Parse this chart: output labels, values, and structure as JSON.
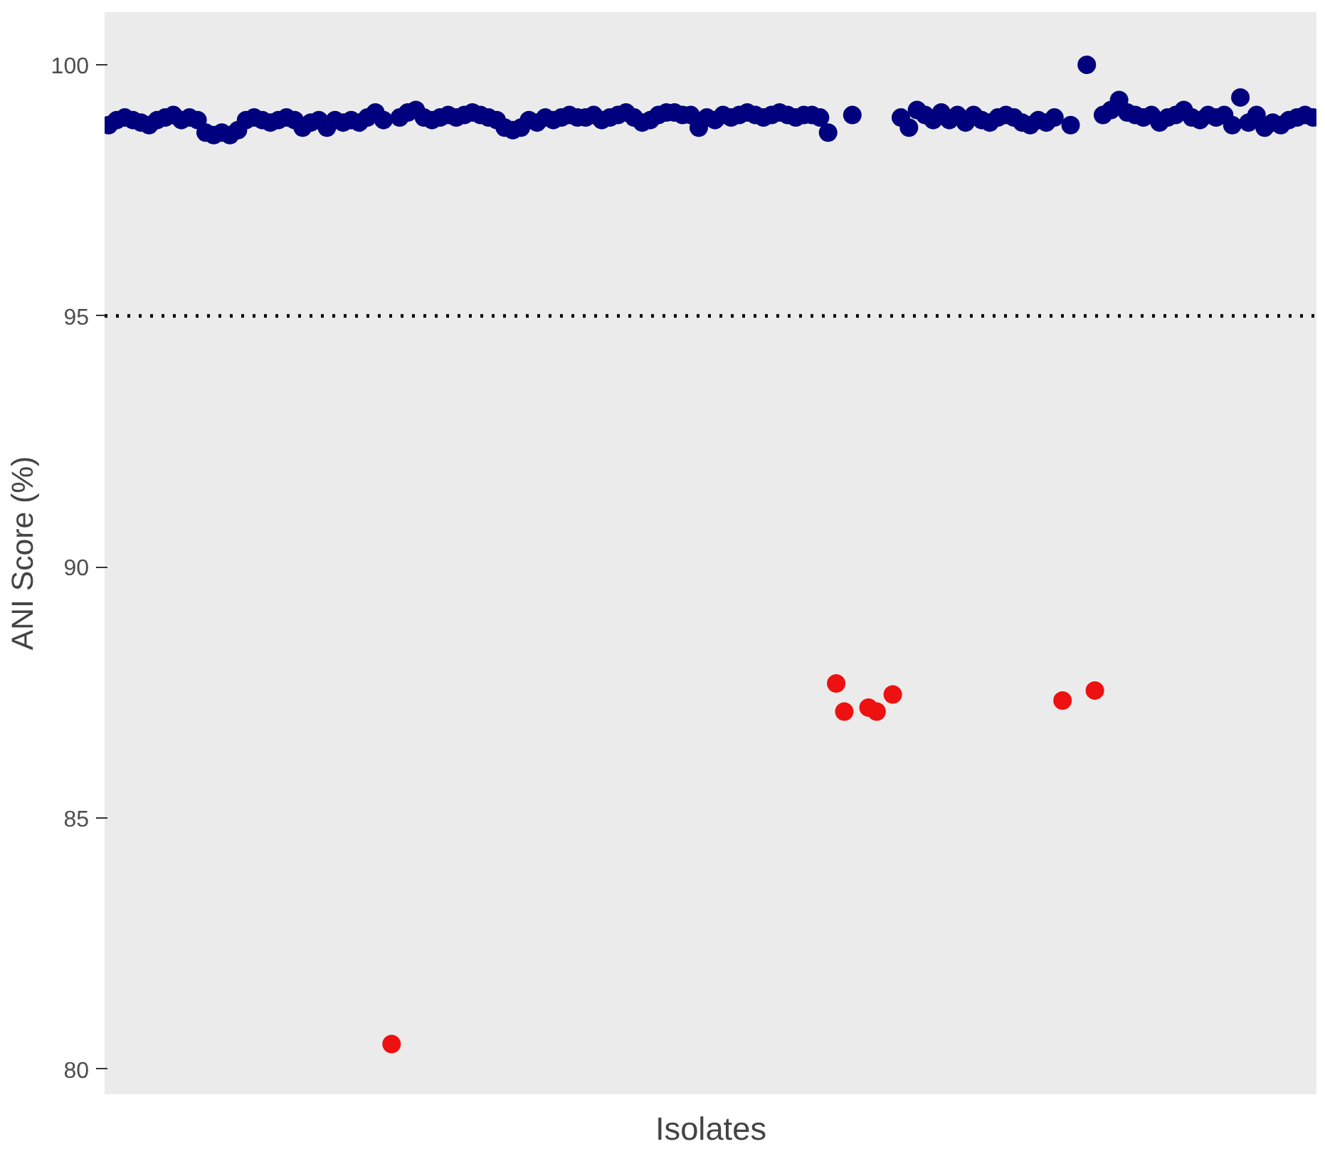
{
  "chart_data": {
    "type": "scatter",
    "xlabel": "Isolates",
    "ylabel": "ANI Score (%)",
    "categories": [
      null,
      null,
      null,
      null,
      null,
      null,
      null,
      null,
      null,
      null,
      null,
      null,
      null,
      null,
      null,
      null,
      null,
      null,
      null,
      null,
      null,
      null,
      null,
      null,
      null,
      null,
      null,
      null,
      null,
      null,
      null,
      null,
      null,
      null,
      null,
      null,
      null,
      null,
      null,
      null,
      null,
      null,
      null,
      null,
      null,
      null,
      null,
      null,
      null,
      null,
      null,
      null,
      null,
      null,
      null,
      null,
      null,
      null,
      null,
      null,
      null,
      null,
      null,
      null,
      null,
      null,
      null,
      null,
      null,
      null,
      null,
      null,
      null,
      null,
      null,
      null,
      null,
      null,
      null,
      null,
      null,
      null,
      null,
      null,
      null,
      null,
      null,
      null,
      null,
      null,
      null,
      null,
      null,
      null,
      null,
      null,
      null,
      null,
      null,
      null,
      null,
      null,
      null,
      null,
      null,
      null,
      null,
      null,
      null,
      null,
      null,
      null,
      null,
      null,
      null,
      null,
      null,
      null,
      null,
      null,
      null,
      null,
      null,
      null,
      null,
      null,
      null,
      null,
      null,
      null,
      null,
      null,
      null,
      null,
      null,
      null,
      null,
      null,
      null,
      null,
      null,
      null,
      null,
      null,
      null,
      null,
      null,
      null,
      null,
      null
    ],
    "series": [
      {
        "color": "#00007f",
        "values": [
          98.8,
          98.9,
          98.95,
          98.9,
          98.85,
          98.8,
          98.9,
          98.95,
          99.0,
          98.9,
          98.95,
          98.9,
          98.65,
          98.6,
          98.65,
          98.6,
          98.7,
          98.9,
          98.95,
          98.9,
          98.85,
          98.9,
          98.95,
          98.9,
          98.75,
          98.85,
          98.9,
          98.75,
          98.9,
          98.85,
          98.9,
          98.85,
          98.95,
          99.05,
          98.9,
          null,
          98.95,
          99.05,
          99.1,
          98.95,
          98.9,
          98.95,
          99.0,
          98.95,
          99.0,
          99.05,
          99.0,
          98.95,
          98.9,
          98.75,
          98.7,
          98.75,
          98.9,
          98.85,
          98.95,
          98.9,
          98.95,
          99.0,
          98.95,
          98.95,
          99.0,
          98.9,
          98.95,
          99.0,
          99.05,
          98.95,
          98.85,
          98.9,
          99.0,
          99.05,
          99.05,
          99.0,
          99.0,
          98.75,
          98.95,
          98.9,
          99.0,
          98.95,
          99.0,
          99.05,
          99.0,
          98.95,
          99.0,
          99.05,
          99.0,
          98.95,
          99.0,
          99.0,
          98.95,
          98.65,
          null,
          null,
          99.0,
          null,
          null,
          null,
          null,
          null,
          98.95,
          98.75,
          99.1,
          99.0,
          98.9,
          99.05,
          98.9,
          99.0,
          98.85,
          99.0,
          98.9,
          98.85,
          98.95,
          99.0,
          98.95,
          98.85,
          98.8,
          98.9,
          98.85,
          98.95,
          null,
          98.8,
          null,
          100.0,
          null,
          99.0,
          99.1,
          99.3,
          99.05,
          99.0,
          98.95,
          99.0,
          98.85,
          98.95,
          99.0,
          99.1,
          98.95,
          98.9,
          99.0,
          98.95,
          99.0,
          98.8,
          99.35,
          98.85,
          99.0,
          98.75,
          98.85,
          98.8,
          98.9,
          98.95,
          99.0,
          98.95
        ]
      },
      {
        "color": "#ee1111",
        "values": [
          null,
          null,
          null,
          null,
          null,
          null,
          null,
          null,
          null,
          null,
          null,
          null,
          null,
          null,
          null,
          null,
          null,
          null,
          null,
          null,
          null,
          null,
          null,
          null,
          null,
          null,
          null,
          null,
          null,
          null,
          null,
          null,
          null,
          null,
          null,
          80.5,
          null,
          null,
          null,
          null,
          null,
          null,
          null,
          null,
          null,
          null,
          null,
          null,
          null,
          null,
          null,
          null,
          null,
          null,
          null,
          null,
          null,
          null,
          null,
          null,
          null,
          null,
          null,
          null,
          null,
          null,
          null,
          null,
          null,
          null,
          null,
          null,
          null,
          null,
          null,
          null,
          null,
          null,
          null,
          null,
          null,
          null,
          null,
          null,
          null,
          null,
          null,
          null,
          null,
          null,
          87.68,
          87.12,
          null,
          null,
          87.2,
          87.12,
          null,
          87.46,
          null,
          null,
          null,
          null,
          null,
          null,
          null,
          null,
          null,
          null,
          null,
          null,
          null,
          null,
          null,
          null,
          null,
          null,
          null,
          null,
          87.34,
          null,
          null,
          null,
          87.54,
          null,
          null,
          null,
          null,
          null,
          null,
          null,
          null,
          null,
          null,
          null,
          null,
          null,
          null,
          null,
          null,
          null,
          null,
          null,
          null,
          null,
          null,
          null,
          null,
          null,
          null,
          null
        ]
      }
    ],
    "ylim": [
      79.5,
      101.05
    ],
    "yticks": [
      80,
      85,
      90,
      95,
      100
    ],
    "ref_lines": [
      {
        "axis": "y",
        "value": 95,
        "color": "#000000",
        "line_style": "dotted"
      }
    ],
    "tick_labels": "y",
    "grid": false,
    "marker": "circle"
  }
}
